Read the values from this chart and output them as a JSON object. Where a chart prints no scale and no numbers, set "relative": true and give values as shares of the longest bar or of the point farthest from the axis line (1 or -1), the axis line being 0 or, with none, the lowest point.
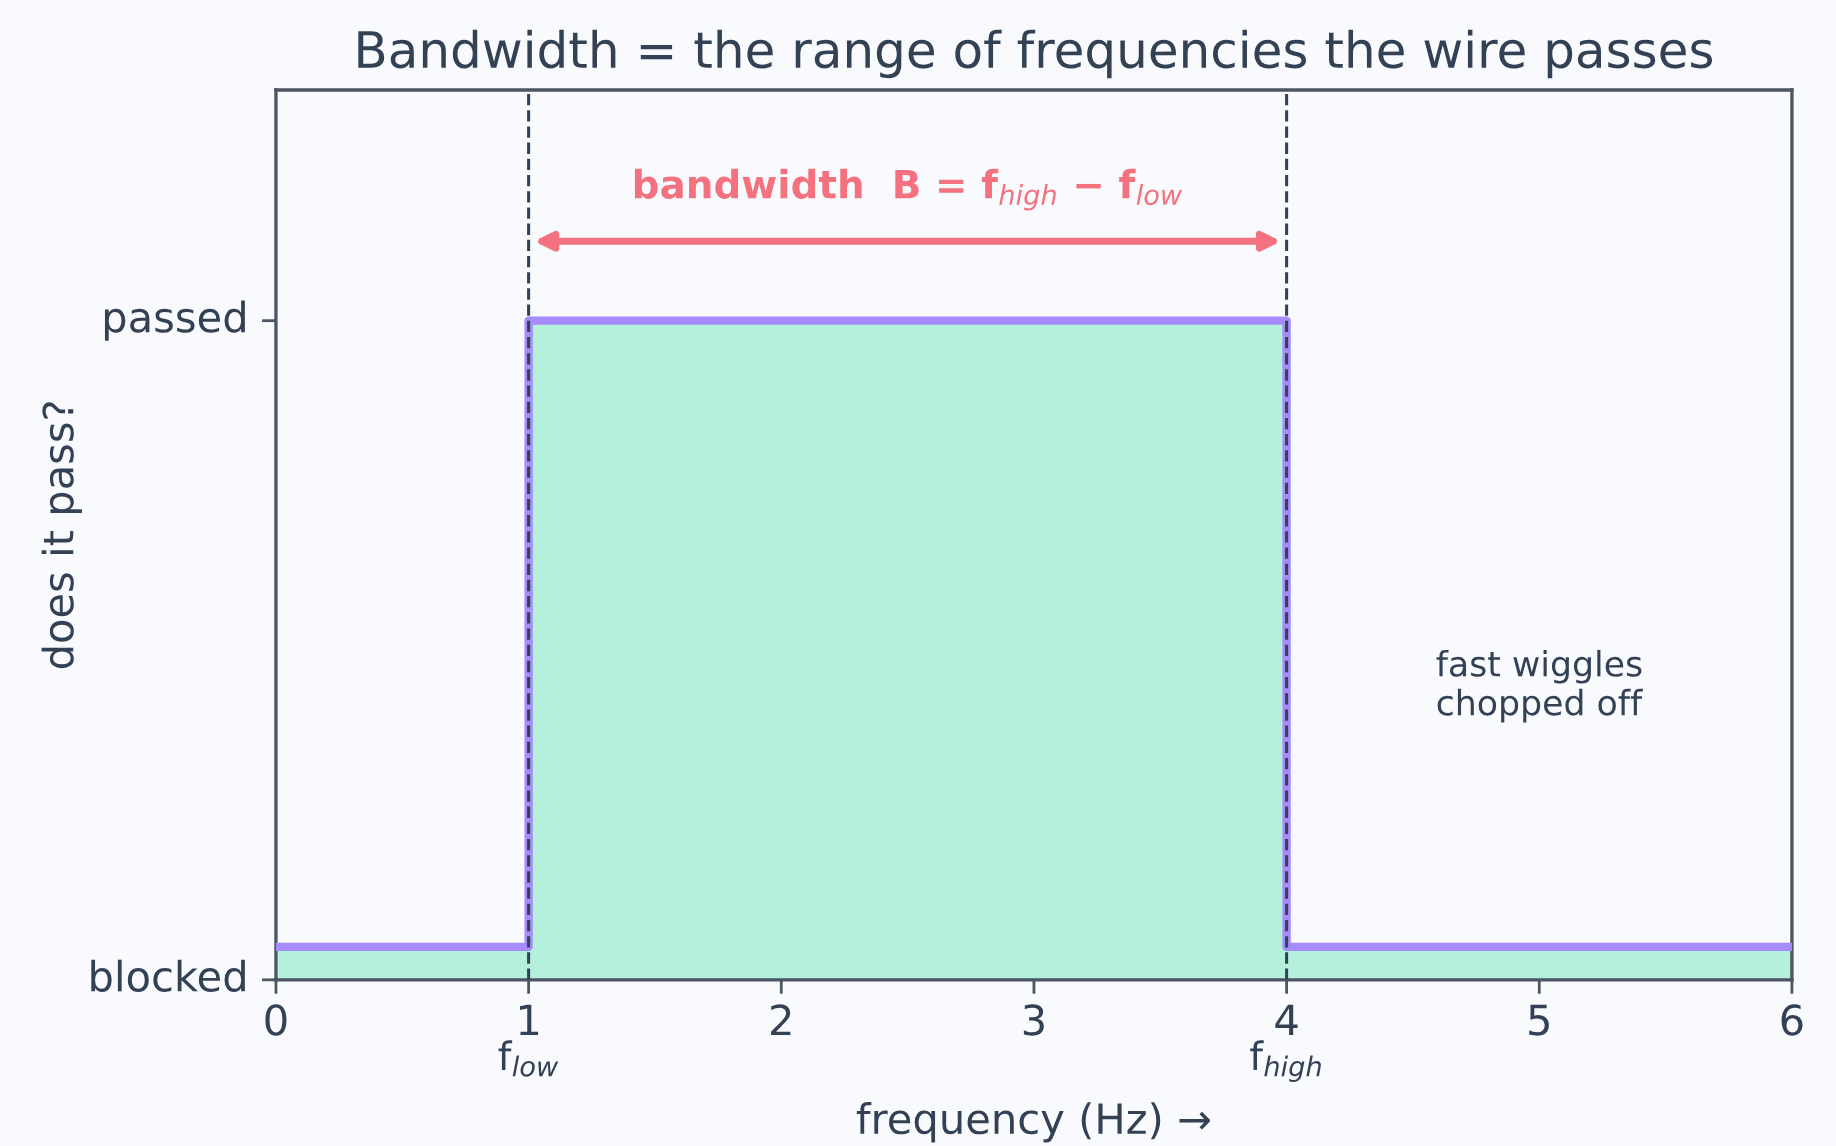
{
  "chart_data": {
    "type": "step",
    "title": "Bandwidth = the range of frequencies the wire passes",
    "xlabel": "frequency (Hz) →",
    "ylabel": "does it pass?",
    "relative": true,
    "series": [
      {
        "type": "area",
        "color": "#b4f0dc",
        "x": [
          0,
          1,
          4,
          6
        ],
        "values": [
          0.05,
          1,
          0.05,
          0.05
        ]
      },
      {
        "color": "#a78bfa",
        "x": [
          0,
          1,
          4,
          6
        ],
        "values": [
          0.05,
          1,
          0.05,
          0.05
        ]
      }
    ],
    "xlim": [
      0,
      6
    ],
    "xticks": [
      0,
      1,
      2,
      3,
      4,
      5,
      6
    ],
    "ref_lines": [
      {
        "axis": "x",
        "value": 1,
        "label": "f$_{low}$",
        "color": "#334155",
        "line_style": "dashed"
      },
      {
        "axis": "x",
        "value": 4,
        "label": "f$_{high}$",
        "color": "#334155",
        "line_style": "dashed"
      }
    ],
    "annotations": [
      "passed",
      "blocked",
      "bandwidth  B = f$_{high}$ − f$_{low}$",
      "fast wiggles\nchopped off"
    ]
  }
}
